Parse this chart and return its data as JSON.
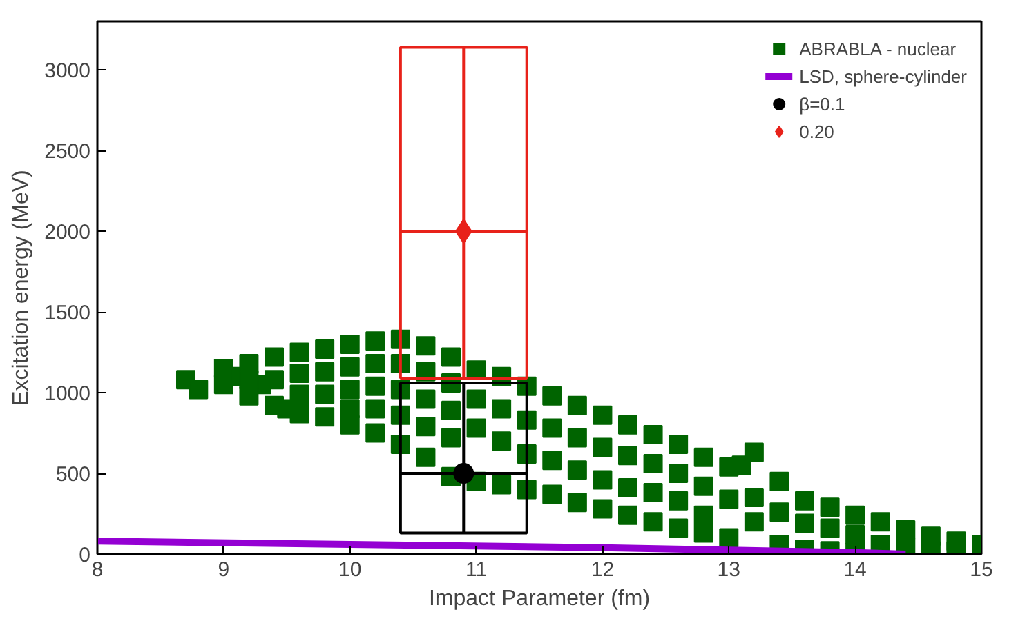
{
  "chart_data": {
    "type": "scatter",
    "xlabel": "Impact Parameter (fm)",
    "ylabel": "Excitation energy (MeV)",
    "xlim": [
      8,
      15
    ],
    "ylim": [
      0,
      3300
    ],
    "xticks": [
      8,
      9,
      10,
      11,
      12,
      13,
      14,
      15
    ],
    "yticks": [
      0,
      500,
      1000,
      1500,
      2000,
      2500,
      3000
    ],
    "grid": false,
    "legend": "top right",
    "series": [
      {
        "name": "ABRABLA - nuclear",
        "marker": "square",
        "color": "#006400",
        "x": [
          8.7,
          8.8,
          9.1,
          9.3,
          9.5,
          9.0,
          9.0,
          9.2,
          9.2,
          9.2,
          9.4,
          9.4,
          9.4,
          9.6,
          9.6,
          9.6,
          9.6,
          9.8,
          9.8,
          9.8,
          9.8,
          10.0,
          10.0,
          10.0,
          10.0,
          10.0,
          10.2,
          10.2,
          10.2,
          10.2,
          10.2,
          10.4,
          10.4,
          10.4,
          10.4,
          10.4,
          10.6,
          10.6,
          10.6,
          10.6,
          10.6,
          10.8,
          10.8,
          10.8,
          10.8,
          10.8,
          11.0,
          11.0,
          11.0,
          11.0,
          11.2,
          11.2,
          11.2,
          11.2,
          11.4,
          11.4,
          11.4,
          11.4,
          11.6,
          11.6,
          11.6,
          11.6,
          11.8,
          11.8,
          11.8,
          11.8,
          12.0,
          12.0,
          12.0,
          12.0,
          12.2,
          12.2,
          12.2,
          12.2,
          12.4,
          12.4,
          12.4,
          12.4,
          12.6,
          12.6,
          12.6,
          12.6,
          12.8,
          12.8,
          12.8,
          12.8,
          13.0,
          13.0,
          13.0,
          13.1,
          13.2,
          13.2,
          13.2,
          13.4,
          13.4,
          13.4,
          13.6,
          13.6,
          13.6,
          13.8,
          13.8,
          13.8,
          14.0,
          14.0,
          14.0,
          14.2,
          14.2,
          14.4,
          14.4,
          14.6,
          14.6,
          14.8,
          14.8,
          15.0
        ],
        "values": [
          1080,
          1020,
          1100,
          1050,
          900,
          1150,
          1050,
          1180,
          1080,
          980,
          1220,
          1080,
          920,
          1250,
          1120,
          990,
          870,
          1270,
          1130,
          990,
          850,
          1300,
          1160,
          1020,
          900,
          800,
          1320,
          1180,
          1040,
          900,
          750,
          1330,
          1180,
          1020,
          860,
          680,
          1290,
          1130,
          960,
          790,
          600,
          1220,
          1060,
          890,
          720,
          480,
          1140,
          960,
          780,
          450,
          1100,
          900,
          700,
          430,
          1040,
          830,
          620,
          400,
          980,
          780,
          580,
          370,
          920,
          720,
          520,
          320,
          860,
          660,
          460,
          280,
          800,
          610,
          410,
          240,
          740,
          560,
          380,
          200,
          680,
          500,
          330,
          160,
          600,
          420,
          240,
          130,
          540,
          340,
          100,
          550,
          630,
          350,
          200,
          450,
          260,
          60,
          330,
          190,
          30,
          290,
          160,
          20,
          240,
          120,
          10,
          200,
          60,
          150,
          40,
          110,
          20,
          80,
          20,
          60
        ]
      },
      {
        "name": "LSD, sphere-cylinder",
        "type": "line",
        "color": "#9400d3",
        "x": [
          8,
          10,
          12,
          14,
          14.4
        ],
        "values": [
          80,
          60,
          40,
          10,
          0
        ]
      },
      {
        "name": "β=0.1",
        "type": "scatter",
        "marker": "circle",
        "color": "#000000",
        "x": [
          10.9
        ],
        "values": [
          500
        ],
        "errors": [
          [
            130,
            1060
          ]
        ],
        "xerrors": [
          [
            10.4,
            11.4
          ]
        ]
      },
      {
        "name": "0.20",
        "type": "scatter",
        "marker": "diamond",
        "color": "#e8221a",
        "x": [
          10.9
        ],
        "values": [
          2000
        ],
        "errors": [
          [
            1090,
            3140
          ]
        ],
        "xerrors": [
          [
            10.4,
            11.4
          ]
        ]
      }
    ]
  }
}
